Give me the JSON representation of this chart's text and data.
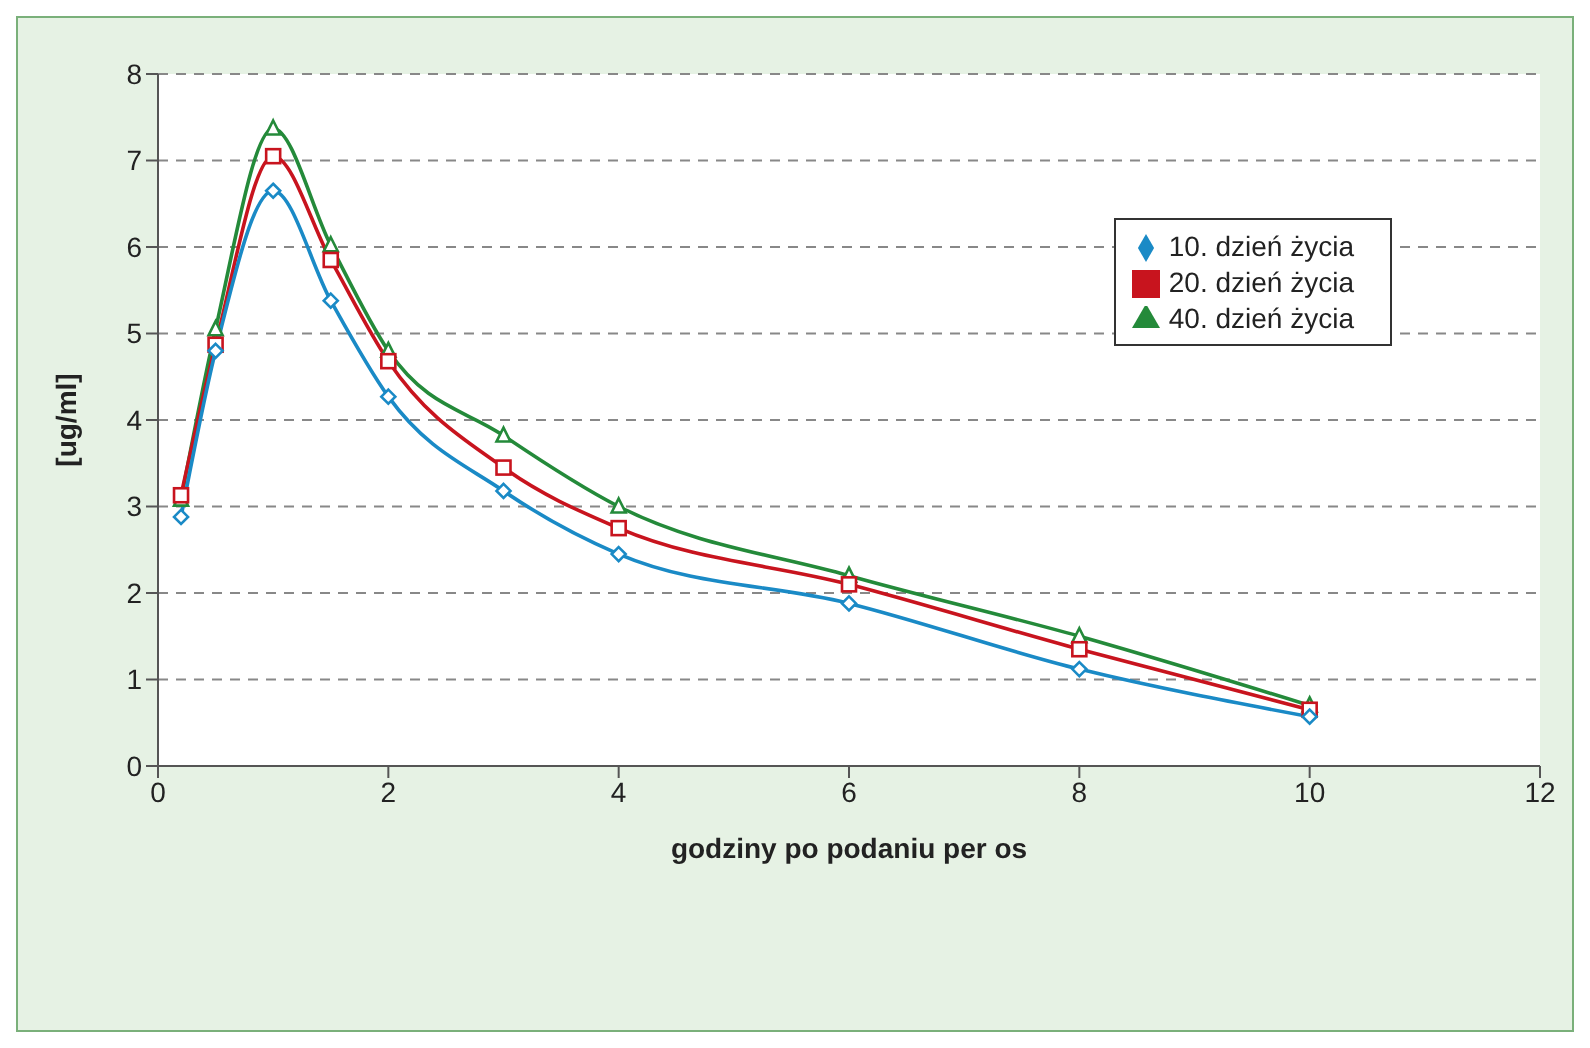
{
  "chart_data": {
    "type": "line",
    "xlabel": "godziny po podaniu per os",
    "ylabel": "[ug/ml]",
    "x": [
      0.2,
      0.5,
      1,
      1.5,
      2,
      3,
      4,
      6,
      8,
      10
    ],
    "series": [
      {
        "name": "10. dzień  życia",
        "color": "#1a8ac6",
        "marker": "diamond",
        "values": [
          2.88,
          4.8,
          6.65,
          5.38,
          4.27,
          3.18,
          2.45,
          1.88,
          1.12,
          0.57
        ]
      },
      {
        "name": "20. dzień  życia",
        "color": "#c8141e",
        "marker": "square",
        "values": [
          3.13,
          4.87,
          7.05,
          5.85,
          4.68,
          3.45,
          2.75,
          2.1,
          1.35,
          0.65
        ]
      },
      {
        "name": "40. dzień  życia",
        "color": "#248a3a",
        "marker": "triangle",
        "values": [
          3.08,
          5.05,
          7.37,
          6.02,
          4.8,
          3.82,
          3.0,
          2.2,
          1.5,
          0.7
        ]
      }
    ],
    "xlim": [
      0,
      12
    ],
    "xticks": [
      0,
      2,
      4,
      6,
      8,
      10,
      12
    ],
    "ylim": [
      0,
      8
    ],
    "yticks": [
      0,
      1,
      2,
      3,
      4,
      5,
      6,
      7,
      8
    ],
    "grid": "y",
    "legend": "top right",
    "line_style": "solid"
  }
}
